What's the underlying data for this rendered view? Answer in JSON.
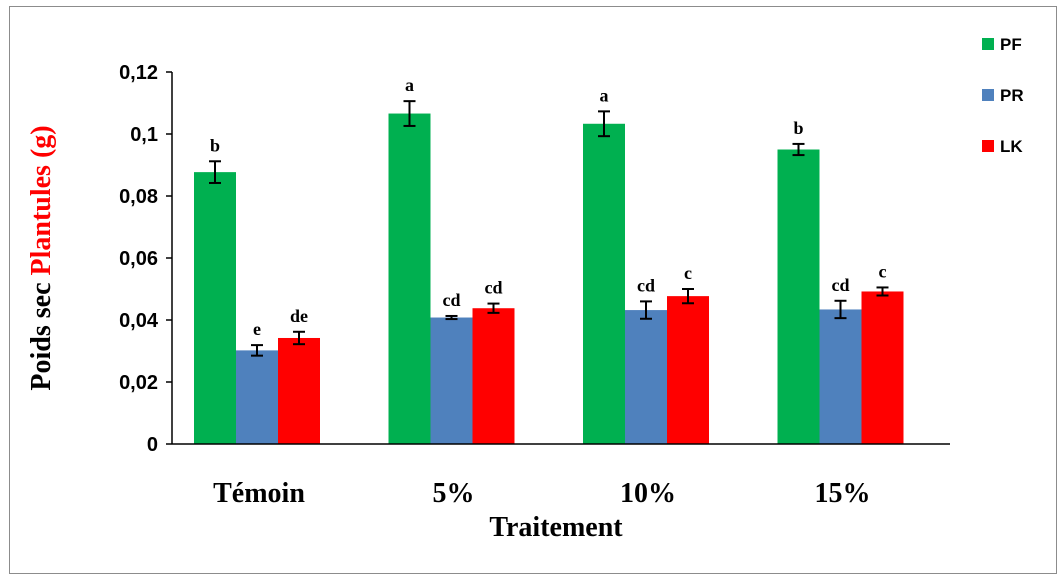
{
  "chart_data": {
    "type": "bar",
    "categories": [
      "Témoin",
      "5%",
      "10%",
      "15%"
    ],
    "series": [
      {
        "name": "PF",
        "color": "#00b050",
        "values": [
          0.0877,
          0.1066,
          0.1033,
          0.095
        ],
        "errors": [
          0.0035,
          0.004,
          0.004,
          0.0018
        ],
        "letters": [
          "b",
          "a",
          "a",
          "b"
        ]
      },
      {
        "name": "PR",
        "color": "#4f81bd",
        "values": [
          0.0302,
          0.0408,
          0.0432,
          0.0434
        ],
        "errors": [
          0.0017,
          0.0005,
          0.0028,
          0.0028
        ],
        "letters": [
          "e",
          "cd",
          "cd",
          "cd"
        ]
      },
      {
        "name": "LK",
        "color": "#ff0000",
        "values": [
          0.0342,
          0.0438,
          0.0477,
          0.0492
        ],
        "errors": [
          0.002,
          0.0015,
          0.0023,
          0.0013
        ],
        "letters": [
          "de",
          "cd",
          "c",
          "c"
        ]
      }
    ],
    "ylim": [
      0,
      0.12
    ],
    "yticks": [
      "0",
      "0,02",
      "0,04",
      "0,06",
      "0,08",
      "0,1",
      "0,12"
    ],
    "xlabel": "Traitement",
    "ylabel_part1": "Poids sec ",
    "ylabel_part2": "Plantules  (g)",
    "ylabel_part2_color": "#ff0000",
    "legend_position": "top-right",
    "grid": false
  }
}
